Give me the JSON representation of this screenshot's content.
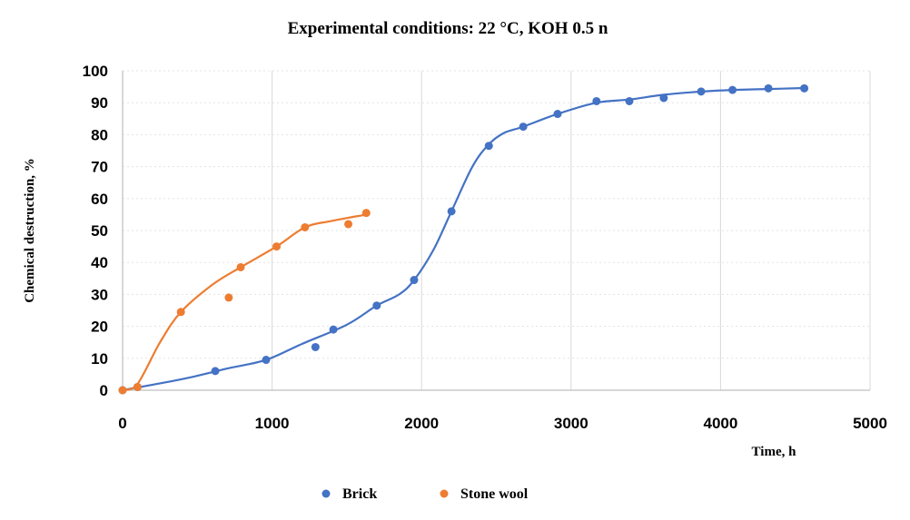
{
  "chart_data": {
    "type": "scatter",
    "title": "Experimental conditions: 22 °C, KOH 0.5 n",
    "xlabel": "Time, h",
    "ylabel": "Chemical destruction, %",
    "xlim": [
      0,
      5000
    ],
    "ylim": [
      0,
      100
    ],
    "xticks": [
      0,
      1000,
      2000,
      3000,
      4000,
      5000
    ],
    "yticks": [
      0,
      10,
      20,
      30,
      40,
      50,
      60,
      70,
      80,
      90,
      100
    ],
    "grid": true,
    "legend_position": "bottom",
    "series": [
      {
        "name": "Brick",
        "color": "#4472C4",
        "points": [
          [
            0,
            0
          ],
          [
            100,
            1
          ],
          [
            620,
            6
          ],
          [
            960,
            9.5
          ],
          [
            1290,
            13.5
          ],
          [
            1410,
            19
          ],
          [
            1700,
            26.5
          ],
          [
            1950,
            34.5
          ],
          [
            2200,
            56
          ],
          [
            2450,
            76.5
          ],
          [
            2680,
            82.5
          ],
          [
            2910,
            86.5
          ],
          [
            3170,
            90.5
          ],
          [
            3390,
            90.5
          ],
          [
            3620,
            91.5
          ],
          [
            3870,
            93.5
          ],
          [
            4080,
            94
          ],
          [
            4320,
            94.5
          ],
          [
            4560,
            94.5
          ]
        ],
        "trend": [
          [
            0,
            0
          ],
          [
            400,
            3.5
          ],
          [
            700,
            6.8
          ],
          [
            960,
            9.5
          ],
          [
            1200,
            14.5
          ],
          [
            1500,
            20.5
          ],
          [
            1700,
            26.5
          ],
          [
            1850,
            30
          ],
          [
            1950,
            34.5
          ],
          [
            2080,
            44
          ],
          [
            2200,
            56
          ],
          [
            2340,
            70
          ],
          [
            2450,
            77
          ],
          [
            2550,
            80.5
          ],
          [
            2680,
            82.5
          ],
          [
            2910,
            86.5
          ],
          [
            3170,
            90
          ],
          [
            3390,
            91
          ],
          [
            3620,
            92.5
          ],
          [
            3870,
            93.5
          ],
          [
            4080,
            94
          ],
          [
            4320,
            94.3
          ],
          [
            4560,
            94.6
          ]
        ]
      },
      {
        "name": "Stone wool",
        "color": "#ED7D31",
        "points": [
          [
            0,
            0
          ],
          [
            100,
            1
          ],
          [
            390,
            24.5
          ],
          [
            710,
            29
          ],
          [
            790,
            38.5
          ],
          [
            1030,
            45
          ],
          [
            1220,
            51
          ],
          [
            1510,
            52
          ],
          [
            1630,
            55.5
          ]
        ],
        "trend": [
          [
            0,
            0
          ],
          [
            100,
            2
          ],
          [
            250,
            15
          ],
          [
            390,
            24.5
          ],
          [
            600,
            33
          ],
          [
            790,
            38.5
          ],
          [
            1030,
            45
          ],
          [
            1220,
            51
          ],
          [
            1400,
            53
          ],
          [
            1630,
            55
          ]
        ]
      }
    ]
  }
}
